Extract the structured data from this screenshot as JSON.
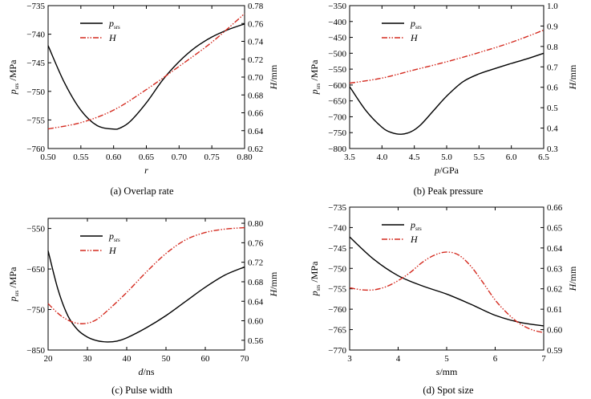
{
  "colors": {
    "psrs": "#000000",
    "H": "#d42a1f"
  },
  "chart_data": [
    {
      "type": "line",
      "caption": "(a) Overlap rate",
      "xlabel": "r",
      "ylabel_left": "p_srs /MPa",
      "ylabel_right": "H/mm",
      "xlim": [
        0.5,
        0.8
      ],
      "xticks": [
        "0.50",
        "0.55",
        "0.60",
        "0.65",
        "0.70",
        "0.75",
        "0.80"
      ],
      "ylim_left": [
        -760,
        -735
      ],
      "yticks_left": [
        "-735",
        "-740",
        "-745",
        "-750",
        "-755",
        "-760"
      ],
      "ylim_right": [
        0.62,
        0.78
      ],
      "yticks_right": [
        "0.78",
        "0.76",
        "0.74",
        "0.72",
        "0.70",
        "0.68",
        "0.66",
        "0.64",
        "0.62"
      ],
      "legend": {
        "placement": "top-left",
        "entries": [
          "p",
          "H"
        ],
        "subscript": "srs"
      },
      "series": [
        {
          "name": "p_srs",
          "axis": "left",
          "x": [
            0.5,
            0.525,
            0.55,
            0.575,
            0.6,
            0.61,
            0.625,
            0.65,
            0.675,
            0.7,
            0.725,
            0.75,
            0.775,
            0.8
          ],
          "y": [
            -742,
            -748.5,
            -753.3,
            -756,
            -756.6,
            -756.4,
            -755.3,
            -752,
            -748,
            -744.8,
            -742.3,
            -740.5,
            -739.2,
            -738.2
          ]
        },
        {
          "name": "H",
          "axis": "right",
          "x": [
            0.5,
            0.55,
            0.6,
            0.65,
            0.7,
            0.75,
            0.8
          ],
          "y": [
            0.642,
            0.649,
            0.663,
            0.686,
            0.712,
            0.739,
            0.771
          ]
        }
      ]
    },
    {
      "type": "line",
      "caption": "(b) Peak pressure",
      "xlabel": "p/GPa",
      "ylabel_left": "p_srs /MPa",
      "ylabel_right": "H/mm",
      "xlim": [
        3.5,
        6.5
      ],
      "xticks": [
        "3.5",
        "4.0",
        "4.5",
        "5.0",
        "5.5",
        "6.0",
        "6.5"
      ],
      "ylim_left": [
        -800,
        -350
      ],
      "yticks_left": [
        "-350",
        "-400",
        "-450",
        "-500",
        "-550",
        "-600",
        "-650",
        "-700",
        "-750",
        "-800"
      ],
      "ylim_right": [
        0.3,
        1.0
      ],
      "yticks_right": [
        "1.0",
        "0.9",
        "0.8",
        "0.7",
        "0.6",
        "0.5",
        "0.4",
        "0.3"
      ],
      "legend": {
        "placement": "top-left",
        "entries": [
          "p",
          "H"
        ],
        "subscript": "srs"
      },
      "series": [
        {
          "name": "p_srs",
          "axis": "left",
          "x": [
            3.5,
            3.75,
            4.0,
            4.15,
            4.3,
            4.45,
            4.6,
            4.8,
            5.0,
            5.25,
            5.5,
            5.75,
            6.0,
            6.25,
            6.5
          ],
          "y": [
            -605,
            -680,
            -733,
            -750,
            -755,
            -747,
            -725,
            -680,
            -635,
            -590,
            -565,
            -548,
            -532,
            -517,
            -500
          ]
        },
        {
          "name": "H",
          "axis": "right",
          "x": [
            3.5,
            4.0,
            4.5,
            5.0,
            5.5,
            6.0,
            6.5
          ],
          "y": [
            0.62,
            0.645,
            0.685,
            0.725,
            0.77,
            0.82,
            0.88
          ]
        }
      ]
    },
    {
      "type": "line",
      "caption": "(c) Pulse width",
      "xlabel": "d/ns",
      "ylabel_left": "p_srs /MPa",
      "ylabel_right": "H/mm",
      "xlim": [
        20,
        70
      ],
      "xticks": [
        "20",
        "30",
        "40",
        "50",
        "60",
        "70"
      ],
      "ylim_left": [
        -850,
        -525
      ],
      "yticks_left": [
        "-550",
        "-650",
        "-750",
        "-850"
      ],
      "ylim_right": [
        0.54,
        0.81
      ],
      "yticks_right": [
        "0.80",
        "0.76",
        "0.72",
        "0.68",
        "0.64",
        "0.60",
        "0.56"
      ],
      "legend": {
        "placement": "top-left",
        "entries": [
          "p",
          "H"
        ],
        "subscript": "srs"
      },
      "series": [
        {
          "name": "p_srs",
          "axis": "left",
          "x": [
            20,
            22.5,
            25,
            27.5,
            30,
            32.5,
            35,
            37.5,
            40,
            45,
            50,
            55,
            60,
            65,
            70
          ],
          "y": [
            -605,
            -700,
            -765,
            -800,
            -818,
            -827,
            -830,
            -828,
            -820,
            -795,
            -765,
            -730,
            -695,
            -665,
            -645
          ]
        },
        {
          "name": "H",
          "axis": "right",
          "x": [
            20,
            23,
            26,
            29,
            32,
            35,
            40,
            45,
            50,
            55,
            60,
            65,
            70
          ],
          "y": [
            0.635,
            0.612,
            0.598,
            0.594,
            0.601,
            0.62,
            0.658,
            0.7,
            0.738,
            0.766,
            0.781,
            0.788,
            0.791
          ]
        }
      ]
    },
    {
      "type": "line",
      "caption": "(d) Spot size",
      "xlabel": "s/mm",
      "ylabel_left": "p_srs /MPa",
      "ylabel_right": "H/mm",
      "xlim": [
        3,
        7
      ],
      "xticks": [
        "3",
        "4",
        "5",
        "6",
        "7"
      ],
      "ylim_left": [
        -770,
        -735
      ],
      "yticks_left": [
        "-735",
        "-740",
        "-745",
        "-750",
        "-755",
        "-760",
        "-765",
        "-770"
      ],
      "ylim_right": [
        0.59,
        0.66
      ],
      "yticks_right": [
        "0.66",
        "0.65",
        "0.64",
        "0.63",
        "0.62",
        "0.61",
        "0.60",
        "0.59"
      ],
      "legend": {
        "placement": "top-left",
        "entries": [
          "p",
          "H"
        ],
        "subscript": "srs"
      },
      "series": [
        {
          "name": "p_srs",
          "axis": "left",
          "x": [
            3,
            3.5,
            4,
            4.5,
            5,
            5.5,
            6,
            6.5,
            7
          ],
          "y": [
            -742.3,
            -747.8,
            -751.8,
            -754.3,
            -756.3,
            -758.8,
            -761.5,
            -763.2,
            -764.1
          ]
        },
        {
          "name": "H",
          "axis": "right",
          "x": [
            3,
            3.25,
            3.5,
            3.75,
            4,
            4.25,
            4.5,
            4.75,
            5,
            5.25,
            5.5,
            5.75,
            6,
            6.25,
            6.5,
            6.75,
            7
          ],
          "y": [
            0.6205,
            0.6195,
            0.6195,
            0.621,
            0.624,
            0.628,
            0.633,
            0.6365,
            0.638,
            0.6365,
            0.631,
            0.623,
            0.6145,
            0.608,
            0.603,
            0.6,
            0.5985
          ]
        }
      ]
    }
  ]
}
